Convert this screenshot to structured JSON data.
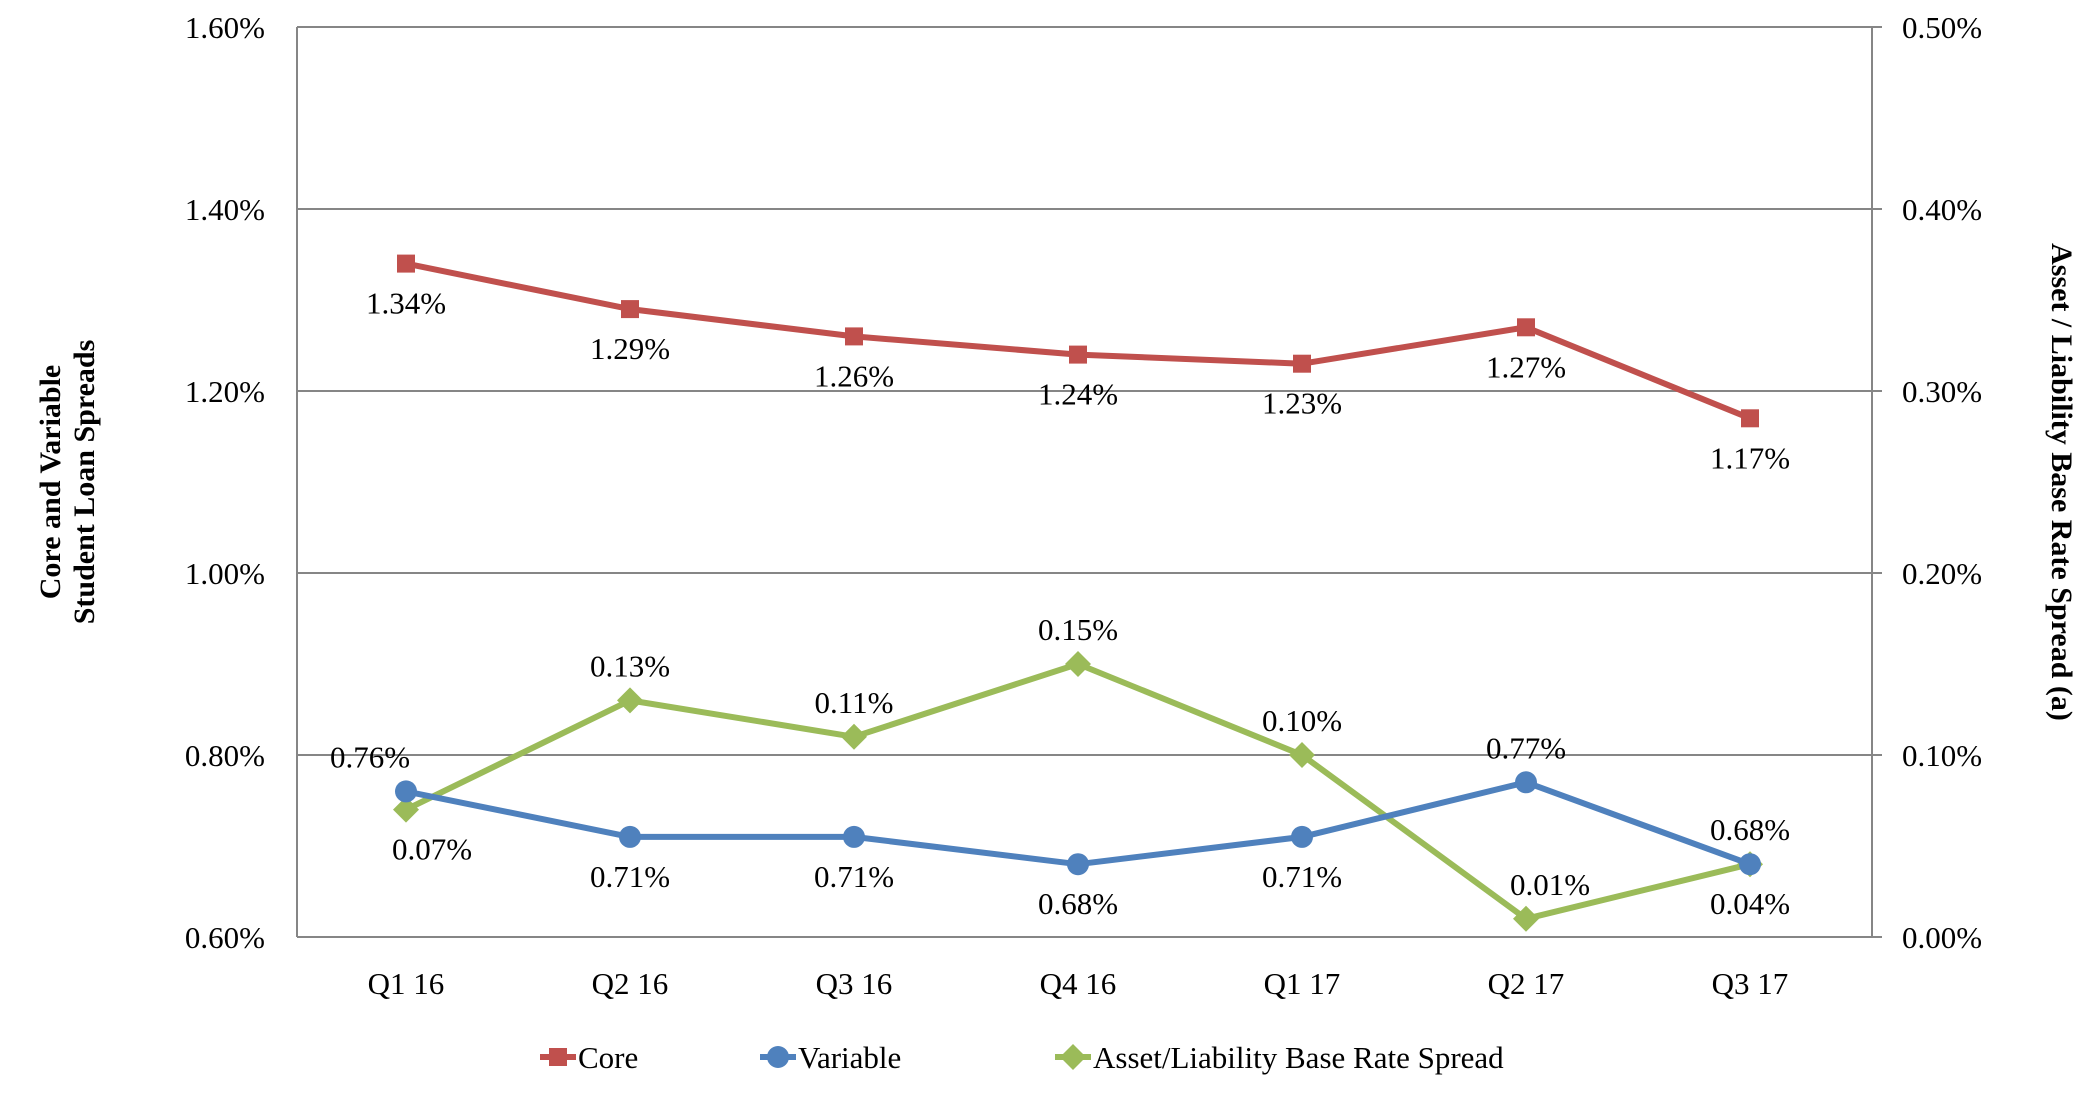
{
  "chart_data": {
    "type": "line",
    "title": "",
    "categories": [
      "Q1 16",
      "Q2 16",
      "Q3 16",
      "Q4 16",
      "Q1 17",
      "Q2 17",
      "Q3 17"
    ],
    "ylabel_left": [
      "Core and Variable",
      "Student Loan Spreads"
    ],
    "ylabel_right": "Asset / Liability Base Rate Spread (a)",
    "ylim_left": [
      0.6,
      1.6
    ],
    "yticks_left": [
      "0.60%",
      "0.80%",
      "1.00%",
      "1.20%",
      "1.40%",
      "1.60%"
    ],
    "ylim_right": [
      0.0,
      0.5
    ],
    "yticks_right": [
      "0.00%",
      "0.10%",
      "0.20%",
      "0.30%",
      "0.40%",
      "0.50%"
    ],
    "grid": true,
    "legend_position": "bottom",
    "series": [
      {
        "name": "Core",
        "axis": "left",
        "color": "#c0504d",
        "marker": "square",
        "values": [
          1.34,
          1.29,
          1.26,
          1.24,
          1.23,
          1.27,
          1.17
        ],
        "labels": [
          "1.34%",
          "1.29%",
          "1.26%",
          "1.24%",
          "1.23%",
          "1.27%",
          "1.17%"
        ]
      },
      {
        "name": "Variable",
        "axis": "left",
        "color": "#4f81bd",
        "marker": "circle",
        "values": [
          0.76,
          0.71,
          0.71,
          0.68,
          0.71,
          0.77,
          0.68
        ],
        "labels": [
          "0.76%",
          "0.71%",
          "0.71%",
          "0.68%",
          "0.71%",
          "0.77%",
          "0.68%"
        ]
      },
      {
        "name": "Asset/Liability Base Rate Spread",
        "axis": "right",
        "color": "#9bbb59",
        "marker": "diamond",
        "values": [
          0.07,
          0.13,
          0.11,
          0.15,
          0.1,
          0.01,
          0.04
        ],
        "labels": [
          "0.07%",
          "0.13%",
          "0.11%",
          "0.15%",
          "0.10%",
          "0.01%",
          "0.04%"
        ]
      }
    ]
  }
}
